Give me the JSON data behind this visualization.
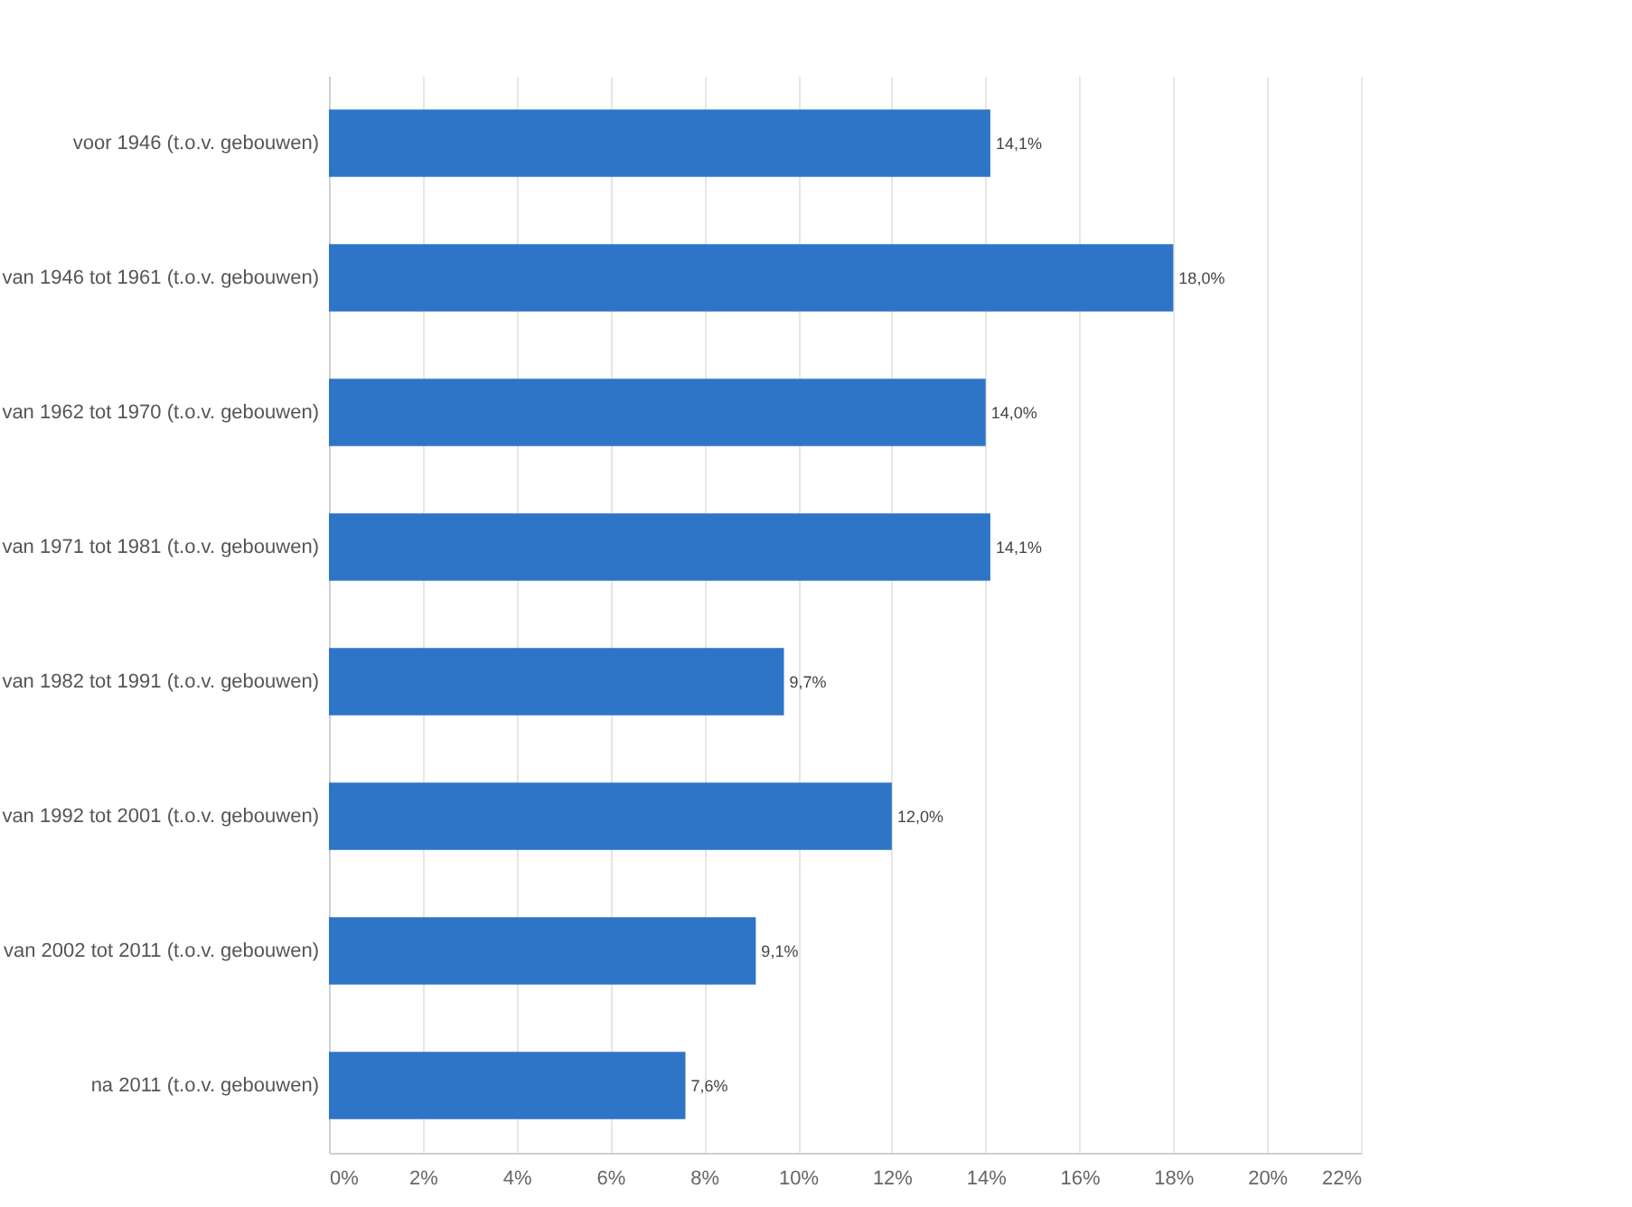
{
  "chart_data": {
    "type": "bar",
    "orientation": "horizontal",
    "categories": [
      "voor 1946 (t.o.v. gebouwen)",
      "van 1946 tot 1961 (t.o.v. gebouwen)",
      "van 1962 tot 1970 (t.o.v. gebouwen)",
      "van 1971 tot 1981 (t.o.v. gebouwen)",
      "van 1982 tot 1991 (t.o.v. gebouwen)",
      "van 1992 tot 2001 (t.o.v. gebouwen)",
      "van 2002 tot 2011 (t.o.v. gebouwen)",
      "na 2011 (t.o.v. gebouwen)"
    ],
    "values": [
      14.1,
      18.0,
      14.0,
      14.1,
      9.7,
      12.0,
      9.1,
      7.6
    ],
    "color": "#2e75c8",
    "value_labels": [
      "14,1%",
      "18,0%",
      "14,0%",
      "14,1%",
      "9,7%",
      "12,0%",
      "9,1%",
      "7,6%"
    ],
    "xlim": [
      0,
      22
    ],
    "xticks": [
      {
        "value": 0,
        "label": "0%"
      },
      {
        "value": 2,
        "label": "2%"
      },
      {
        "value": 4,
        "label": "4%"
      },
      {
        "value": 6,
        "label": "6%"
      },
      {
        "value": 8,
        "label": "8%"
      },
      {
        "value": 10,
        "label": "10%"
      },
      {
        "value": 12,
        "label": "12%"
      },
      {
        "value": 14,
        "label": "14%"
      },
      {
        "value": 16,
        "label": "16%"
      },
      {
        "value": 18,
        "label": "18%"
      },
      {
        "value": 20,
        "label": "20%"
      },
      {
        "value": 22,
        "label": "22%"
      }
    ],
    "grid": "x"
  }
}
